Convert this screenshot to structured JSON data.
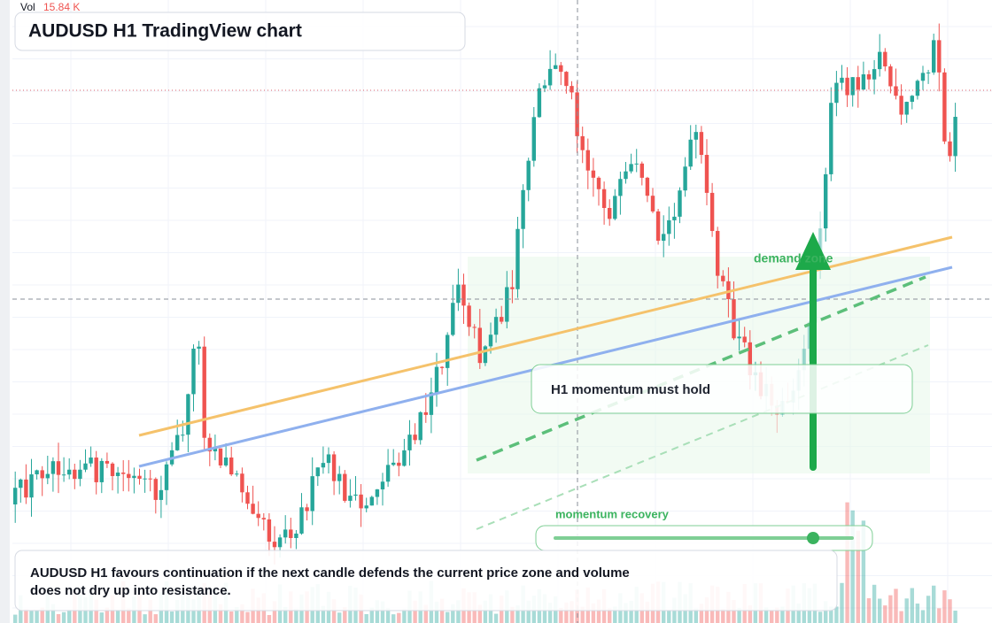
{
  "volume_label": {
    "name": "Vol",
    "value": "15.84 K"
  },
  "header": {
    "title": "AUDUSD H1 TradingView chart"
  },
  "annotations": {
    "demand_zone": "demand zone",
    "momentum_box": "H1 momentum must hold",
    "momentum_slider": "momentum recovery"
  },
  "caption": {
    "lines": [
      "AUDUSD H1 favours continuation if the next candle defends the current price zone and volume",
      "does not dry up into resistance."
    ]
  }
}
